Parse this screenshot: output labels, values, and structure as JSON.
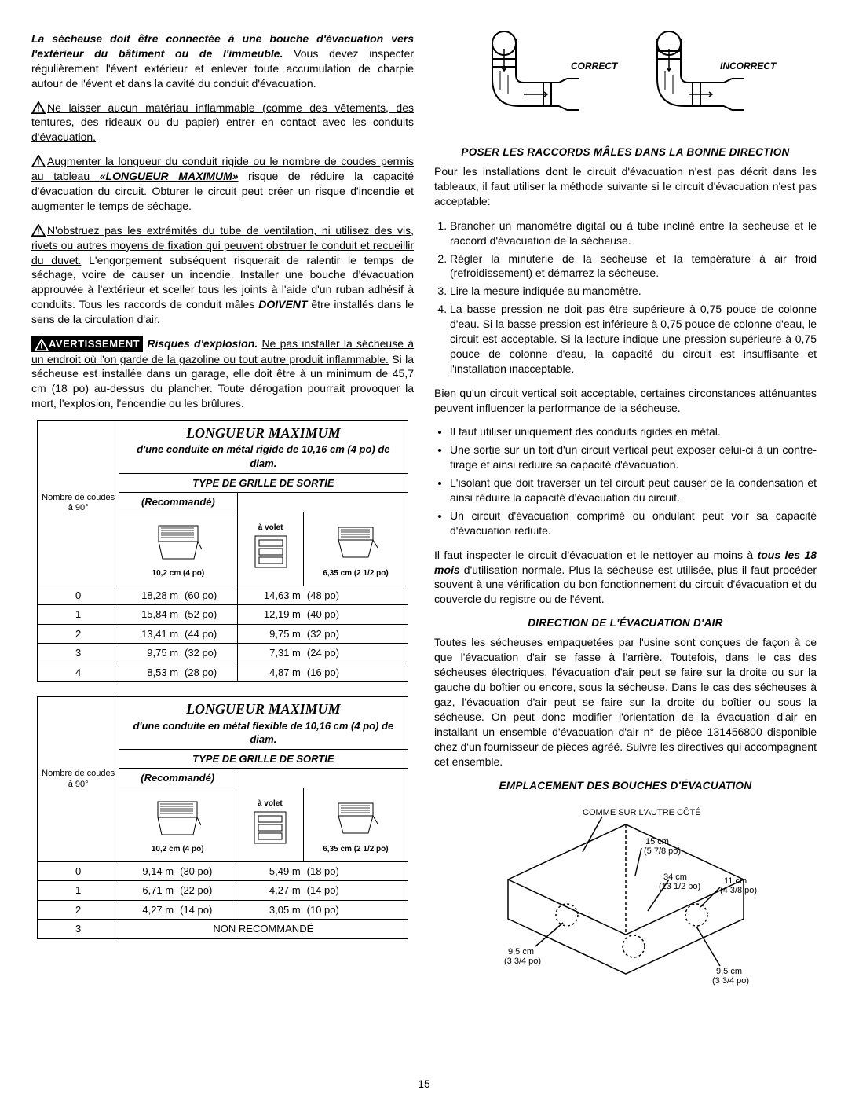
{
  "left": {
    "p1_bold": "La sécheuse doit être connectée à une bouche d'évacuation vers l'extérieur du bâtiment ou de l'immeuble.",
    "p1_rest": " Vous devez inspecter régulièrement l'évent extérieur et enlever toute accumulation de charpie autour de l'évent et dans la cavité du conduit d'évacuation.",
    "p2": "Ne laisser aucun matériau inflammable (comme des vêtements, des tentures, des rideaux ou du papier) entrer en contact avec les conduits d'évacuation.",
    "p3a": "Augmenter la longueur du conduit rigide ou le nombre de coudes permis au tableau ",
    "p3b": "«LONGUEUR MAXIMUM»",
    "p3c": " risque de réduire la capacité d'évacuation du circuit. Obturer le circuit peut créer un risque d'incendie et augmenter le temps de séchage.",
    "p4a": "N'obstruez pas les extrémités du tube de ventilation, ni utilisez des vis, rivets ou autres moyens de fixation qui peuvent obstruer le conduit et recueillir du duvet.",
    "p4b": " L'engorgement subséquent risquerait de ralentir le temps de séchage, voire de causer un incendie. Installer une bouche d'évacuation approuvée à l'extérieur et sceller tous les joints à l'aide d'un ruban adhésif à conduits. Tous les raccords de conduit mâles ",
    "p4c": "DOIVENT",
    "p4d": " être installés dans le sens de la circulation d'air.",
    "avert": "AVERTISSEMENT",
    "p5a": "Risques d'explosion.",
    "p5b": "Ne pas installer la sécheuse à un endroit où l'on garde de la gazoline ou tout autre produit inflammable.",
    "p5c": " Si la sécheuse est installée dans un garage, elle doit être à un minimum de 45,7 cm (18 po) au-dessus du plancher. Toute dérogation pourrait provoquer la mort, l'explosion, l'encendie ou les brûlures."
  },
  "table1": {
    "title": "LONGUEUR MAXIMUM",
    "sub1": "d'une conduite en métal rigide de 10,16 cm (4 po) de diam.",
    "sub2": "TYPE DE GRILLE DE SORTIE",
    "rec": "(Recommandé)",
    "avolet": "à volet",
    "dim4": "10,2 cm (4 po)",
    "dim25": "6,35 cm (2 1/2 po)",
    "rowlbl": "Nombre de coudes à 90°",
    "rows": [
      {
        "n": "0",
        "a": "18,28 m",
        "ap": "(60 po)",
        "b": "14,63 m",
        "bp": "(48 po)"
      },
      {
        "n": "1",
        "a": "15,84 m",
        "ap": "(52 po)",
        "b": "12,19 m",
        "bp": "(40 po)"
      },
      {
        "n": "2",
        "a": "13,41 m",
        "ap": "(44 po)",
        "b": "9,75 m",
        "bp": "(32 po)"
      },
      {
        "n": "3",
        "a": "9,75 m",
        "ap": "(32 po)",
        "b": "7,31 m",
        "bp": "(24 po)"
      },
      {
        "n": "4",
        "a": "8,53 m",
        "ap": "(28 po)",
        "b": "4,87 m",
        "bp": "(16 po)"
      }
    ]
  },
  "table2": {
    "title": "LONGUEUR MAXIMUM",
    "sub1": "d'une conduite en métal flexible de 10,16 cm (4 po) de diam.",
    "sub2": "TYPE DE GRILLE DE SORTIE",
    "rec": "(Recommandé)",
    "avolet": "à volet",
    "dim4": "10,2 cm (4 po)",
    "dim25": "6,35 cm (2 1/2 po)",
    "rowlbl": "Nombre de coudes à 90°",
    "rows": [
      {
        "n": "0",
        "a": "9,14 m",
        "ap": "(30 po)",
        "b": "5,49 m",
        "bp": "(18 po)"
      },
      {
        "n": "1",
        "a": "6,71 m",
        "ap": "(22 po)",
        "b": "4,27 m",
        "bp": "(14 po)"
      },
      {
        "n": "2",
        "a": "4,27 m",
        "ap": "(14 po)",
        "b": "3,05 m",
        "bp": "(10 po)"
      }
    ],
    "notrec": "NON RECOMMANDÉ",
    "notrec_n": "3"
  },
  "right": {
    "correct": "CORRECT",
    "incorrect": "INCORRECT",
    "sec1": "POSER LES RACCORDS MÂLES DANS LA BONNE DIRECTION",
    "p1": "Pour les installations dont le circuit d'évacuation n'est pas décrit dans les tableaux, il faut utiliser la méthode suivante si le circuit d'évacuation n'est pas acceptable:",
    "ol": [
      "Brancher un manomètre digital ou à tube incliné entre la sécheuse et le raccord d'évacuation de la sécheuse.",
      "Régler la minuterie de la sécheuse et la température à air froid (refroidissement) et démarrez la sécheuse.",
      "Lire la mesure indiquée au manomètre.",
      "La basse pression ne doit pas être supérieure à 0,75 pouce de colonne d'eau. Si la basse pression est inférieure à 0,75 pouce de colonne d'eau, le circuit est acceptable. Si la lecture indique une pression supérieure à 0,75 pouce de colonne d'eau, la capacité du circuit est insuffisante et l'installation inacceptable."
    ],
    "p2": "Bien qu'un circuit vertical soit acceptable, certaines circonstances atténuantes peuvent influencer la performance de la sécheuse.",
    "ul": [
      "Il faut utiliser uniquement des conduits rigides en métal.",
      "Une sortie sur un toit d'un circuit vertical peut exposer celui-ci à un contre-tirage et ainsi réduire sa capacité d'évacuation.",
      "L'isolant que doit traverser un tel circuit peut causer de la condensation et ainsi réduire la capacité d'évacuation du circuit.",
      "Un circuit d'évacuation comprimé ou ondulant peut voir sa capacité d'évacuation réduite."
    ],
    "p3a": "Il faut inspecter le circuit d'évacuation et le nettoyer au moins à ",
    "p3b": "tous les 18 mois",
    "p3c": " d'utilisation normale. Plus la sécheuse est utilisée, plus il faut procéder souvent à une vérification du bon fonctionnement du circuit d'évacuation et du couvercle du registre ou de l'évent.",
    "sec2": "DIRECTION DE L'ÉVACUATION D'AIR",
    "p4": "Toutes les sécheuses empaquetées par l'usine sont conçues de façon à ce que l'évacuation d'air se fasse à l'arrière. Toutefois, dans le cas des sécheuses électriques, l'évacuation d'air peut se faire sur la droite ou sur la gauche du boîtier ou encore, sous la sécheuse. Dans le cas des sécheuses à gaz, l'évacuation d'air peut se faire sur la droite du boîtier ou sous la sécheuse. On peut donc modifier l'orientation de la évacuation d'air en installant un ensemble d'évacuation d'air n° de pièce 131456800 disponible chez d'un fournisseur de pièces agréé. Suivre les directives qui accompagnent cet ensemble.",
    "sec3": "EMPLACEMENT DES BOUCHES D'ÉVACUATION",
    "fig": {
      "top": "COMME SUR L'AUTRE CÔTÉ",
      "d1": "15 cm",
      "d1b": "(5 7/8 po)",
      "d2": "34 cm",
      "d2b": "(13 1/2 po)",
      "d3": "11 cm",
      "d3b": "(4 3/8 po)",
      "d4": "9,5 cm",
      "d4b": "(3 3/4 po)",
      "d5": "9,5 cm",
      "d5b": "(3 3/4 po)"
    }
  },
  "page": "15"
}
